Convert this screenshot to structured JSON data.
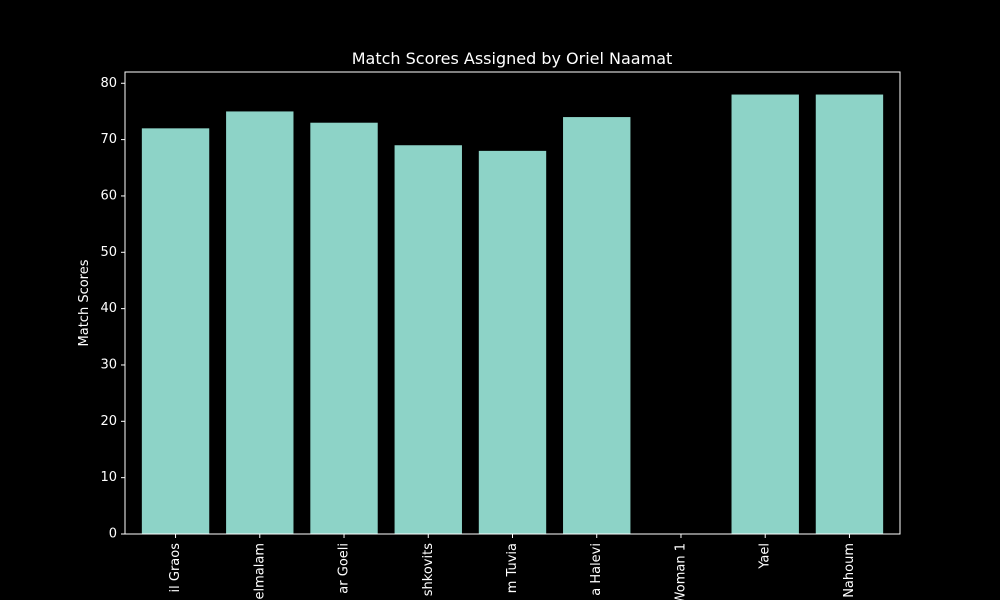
{
  "chart_data": {
    "type": "bar",
    "title": "Match Scores Assigned by Oriel Naamat",
    "xlabel": "",
    "ylabel": "Match Scores",
    "categories": [
      "il Graos",
      "elmalam",
      "ar Goeli",
      "shkovits",
      "m Tuvia",
      "a Halevi",
      "Woman 1",
      "Yael",
      "Nahoum"
    ],
    "values": [
      72,
      75,
      73,
      69,
      68,
      74,
      0,
      78,
      78
    ],
    "ylim": [
      0,
      82
    ],
    "yticks": [
      0,
      10,
      20,
      30,
      40,
      50,
      60,
      70,
      80
    ],
    "grid": false,
    "bar_color": "#8dd3c7",
    "background_color": "#000000",
    "text_color": "#ffffff"
  }
}
